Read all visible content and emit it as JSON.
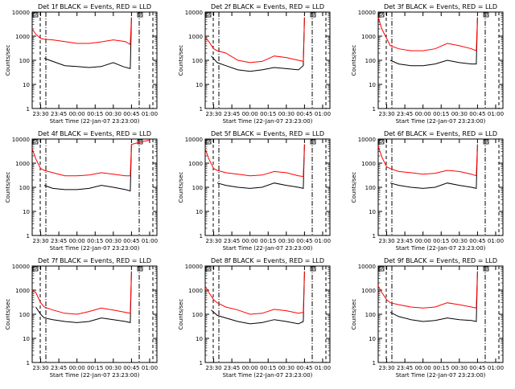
{
  "figure": {
    "ylabel": "Counts/sec",
    "xlabel": "Start Time (22-Jan-07 23:23:00)",
    "x_ticks": [
      "23:30",
      "23:45",
      "00:00",
      "00:15",
      "00:30",
      "00:45",
      "01:00"
    ],
    "y_ticks": [
      "1",
      "10",
      "100",
      "1000",
      "10000"
    ],
    "markers": [
      "SA",
      "SA"
    ]
  },
  "chart_data": [
    {
      "type": "line",
      "title": "Det 1f BLACK = Events, RED = LLD",
      "series": [
        {
          "color": "#000000",
          "x": [
            "23:33",
            "23:40",
            "23:50",
            "00:00",
            "00:10",
            "00:20",
            "00:30",
            "00:38",
            "00:44",
            "00:45"
          ],
          "y": [
            120,
            90,
            60,
            55,
            50,
            55,
            80,
            55,
            45,
            6000
          ]
        },
        {
          "color": "#ff0000",
          "x": [
            "23:23",
            "23:26",
            "23:30",
            "23:33",
            "23:40",
            "23:50",
            "00:00",
            "00:10",
            "00:20",
            "00:30",
            "00:40",
            "00:44",
            "00:45"
          ],
          "y": [
            2000,
            1200,
            800,
            750,
            700,
            600,
            500,
            500,
            580,
            700,
            600,
            450,
            6000
          ]
        }
      ]
    },
    {
      "type": "line",
      "title": "Det 2f BLACK = Events, RED = LLD",
      "series": [
        {
          "color": "#000000",
          "x": [
            "23:28",
            "23:33",
            "23:40",
            "23:50",
            "00:00",
            "00:10",
            "00:20",
            "00:30",
            "00:40",
            "00:44",
            "00:45"
          ],
          "y": [
            150,
            80,
            60,
            40,
            35,
            40,
            50,
            45,
            40,
            60,
            6000
          ]
        },
        {
          "color": "#ff0000",
          "x": [
            "23:23",
            "23:26",
            "23:30",
            "23:33",
            "23:40",
            "23:50",
            "00:00",
            "00:10",
            "00:20",
            "00:30",
            "00:40",
            "00:44",
            "00:45"
          ],
          "y": [
            900,
            600,
            300,
            250,
            200,
            100,
            80,
            90,
            150,
            130,
            100,
            90,
            6000
          ]
        }
      ]
    },
    {
      "type": "line",
      "title": "Det 3f BLACK = Events, RED = LLD",
      "series": [
        {
          "color": "#000000",
          "x": [
            "23:33",
            "23:40",
            "23:50",
            "00:00",
            "00:10",
            "00:20",
            "00:30",
            "00:40",
            "00:44",
            "00:45"
          ],
          "y": [
            100,
            70,
            60,
            60,
            70,
            100,
            80,
            70,
            70,
            6000
          ]
        },
        {
          "color": "#ff0000",
          "x": [
            "23:23",
            "23:26",
            "23:30",
            "23:33",
            "23:40",
            "23:50",
            "00:00",
            "00:10",
            "00:20",
            "00:30",
            "00:40",
            "00:44",
            "00:45"
          ],
          "y": [
            6000,
            2000,
            800,
            400,
            300,
            250,
            250,
            300,
            500,
            400,
            300,
            250,
            6000
          ]
        }
      ]
    },
    {
      "type": "line",
      "title": "Det 4f BLACK = Events, RED = LLD",
      "series": [
        {
          "color": "#000000",
          "x": [
            "23:33",
            "23:40",
            "23:50",
            "00:00",
            "00:10",
            "00:20",
            "00:30",
            "00:40",
            "00:44",
            "00:45"
          ],
          "y": [
            120,
            90,
            80,
            80,
            90,
            120,
            100,
            80,
            70,
            6000
          ]
        },
        {
          "color": "#ff0000",
          "x": [
            "23:23",
            "23:26",
            "23:30",
            "23:33",
            "23:40",
            "23:50",
            "00:00",
            "00:10",
            "00:20",
            "00:30",
            "00:40",
            "00:44",
            "00:45",
            "00:55",
            "01:00"
          ],
          "y": [
            4000,
            1500,
            600,
            500,
            400,
            300,
            300,
            320,
            400,
            350,
            300,
            300,
            6000,
            8000,
            9000
          ]
        }
      ]
    },
    {
      "type": "line",
      "title": "Det 5f BLACK = Events, RED = LLD",
      "series": [
        {
          "color": "#000000",
          "x": [
            "23:33",
            "23:40",
            "23:50",
            "00:00",
            "00:10",
            "00:20",
            "00:30",
            "00:40",
            "00:44",
            "00:45"
          ],
          "y": [
            150,
            120,
            100,
            90,
            100,
            150,
            120,
            100,
            90,
            6000
          ]
        },
        {
          "color": "#ff0000",
          "x": [
            "23:23",
            "23:26",
            "23:30",
            "23:33",
            "23:40",
            "23:50",
            "00:00",
            "00:10",
            "00:20",
            "00:30",
            "00:40",
            "00:44",
            "00:45"
          ],
          "y": [
            4000,
            1500,
            600,
            500,
            400,
            350,
            300,
            320,
            450,
            400,
            300,
            280,
            6000
          ]
        }
      ]
    },
    {
      "type": "line",
      "title": "Det 6f BLACK = Events, RED = LLD",
      "series": [
        {
          "color": "#000000",
          "x": [
            "23:33",
            "23:40",
            "23:50",
            "00:00",
            "00:10",
            "00:20",
            "00:30",
            "00:40",
            "00:44",
            "00:45"
          ],
          "y": [
            150,
            120,
            100,
            90,
            100,
            150,
            120,
            100,
            90,
            6000
          ]
        },
        {
          "color": "#ff0000",
          "x": [
            "23:23",
            "23:26",
            "23:30",
            "23:33",
            "23:40",
            "23:50",
            "00:00",
            "00:10",
            "00:20",
            "00:30",
            "00:40",
            "00:44",
            "00:45"
          ],
          "y": [
            5000,
            1800,
            700,
            600,
            450,
            400,
            350,
            380,
            500,
            450,
            350,
            300,
            6000
          ]
        }
      ]
    },
    {
      "type": "line",
      "title": "Det 7f BLACK = Events, RED = LLD",
      "series": [
        {
          "color": "#000000",
          "x": [
            "23:26",
            "23:30",
            "23:33",
            "23:40",
            "23:50",
            "00:00",
            "00:10",
            "00:20",
            "00:30",
            "00:40",
            "00:44",
            "00:45"
          ],
          "y": [
            200,
            100,
            70,
            60,
            50,
            45,
            50,
            70,
            60,
            50,
            45,
            6000
          ]
        },
        {
          "color": "#ff0000",
          "x": [
            "23:23",
            "23:26",
            "23:30",
            "23:33",
            "23:40",
            "23:50",
            "00:00",
            "00:10",
            "00:20",
            "00:30",
            "00:40",
            "00:44",
            "00:45"
          ],
          "y": [
            1000,
            800,
            300,
            200,
            150,
            110,
            100,
            130,
            180,
            150,
            120,
            110,
            6000
          ]
        }
      ]
    },
    {
      "type": "line",
      "title": "Det 8f BLACK = Events, RED = LLD",
      "series": [
        {
          "color": "#000000",
          "x": [
            "23:28",
            "23:33",
            "23:40",
            "23:50",
            "00:00",
            "00:10",
            "00:20",
            "00:30",
            "00:40",
            "00:44",
            "00:45"
          ],
          "y": [
            150,
            90,
            70,
            50,
            40,
            45,
            60,
            50,
            40,
            50,
            6000
          ]
        },
        {
          "color": "#ff0000",
          "x": [
            "23:23",
            "23:26",
            "23:30",
            "23:33",
            "23:40",
            "23:50",
            "00:00",
            "00:10",
            "00:20",
            "00:30",
            "00:40",
            "00:44",
            "00:45"
          ],
          "y": [
            1500,
            800,
            400,
            300,
            200,
            150,
            100,
            110,
            160,
            140,
            110,
            120,
            6000
          ]
        }
      ]
    },
    {
      "type": "line",
      "title": "Det 9f BLACK = Events, RED = LLD",
      "series": [
        {
          "color": "#000000",
          "x": [
            "23:33",
            "23:40",
            "23:50",
            "00:00",
            "00:10",
            "00:20",
            "00:30",
            "00:40",
            "00:44",
            "00:45"
          ],
          "y": [
            120,
            80,
            60,
            50,
            55,
            70,
            60,
            55,
            50,
            6000
          ]
        },
        {
          "color": "#ff0000",
          "x": [
            "23:23",
            "23:26",
            "23:30",
            "23:33",
            "23:40",
            "23:50",
            "00:00",
            "00:10",
            "00:20",
            "00:30",
            "00:40",
            "00:44",
            "00:45"
          ],
          "y": [
            1500,
            800,
            400,
            300,
            250,
            200,
            180,
            200,
            300,
            250,
            200,
            180,
            6000
          ]
        }
      ]
    }
  ]
}
